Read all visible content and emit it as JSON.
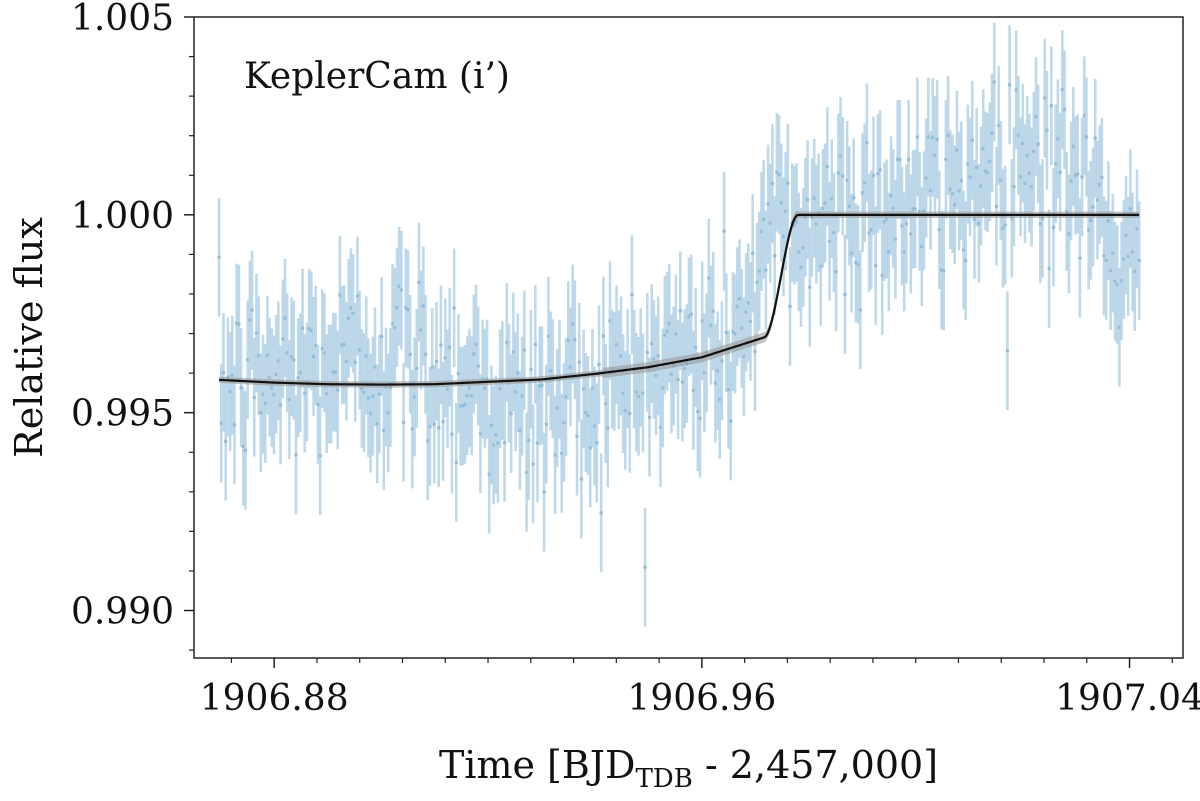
{
  "chart_data": {
    "type": "scatter",
    "annotation": "KeplerCam (i’)",
    "xlabel": {
      "prefix": "Time [BJD",
      "subscript": "TDB",
      "suffix": " - 2,457,000]"
    },
    "ylabel": "Relative flux",
    "xlim": [
      1906.865,
      1907.05
    ],
    "ylim": [
      0.9888,
      1.005
    ],
    "x_major_ticks": [
      1906.88,
      1906.96,
      1907.04
    ],
    "x_major_tick_labels": [
      "1906.88",
      "1906.96",
      "1907.04"
    ],
    "x_minor_tick_step": 0.008,
    "y_major_ticks": [
      0.99,
      0.995,
      1.0,
      1.005
    ],
    "y_major_tick_labels": [
      "0.990",
      "0.995",
      "1.000",
      "1.005"
    ],
    "y_minor_tick_step": 0.001,
    "series": [
      {
        "name": "KeplerCam data",
        "color": "#a9cce3",
        "marker_color": "#8fbad6",
        "x_start": 1906.8697,
        "x_end": 1907.0418,
        "n_points": 420,
        "error": 0.0015,
        "trend_knots": {
          "x": [
            1906.8697,
            1906.885,
            1906.9,
            1906.915,
            1906.925,
            1906.94,
            1906.955,
            1906.967,
            1906.972,
            1906.98,
            1906.995,
            1907.005,
            1907.015,
            1907.025,
            1907.035,
            1907.0418
          ],
          "y": [
            0.9956,
            0.996,
            0.9965,
            0.996,
            0.995,
            0.9955,
            0.9962,
            0.997,
            0.9992,
            0.9998,
            1.0004,
            1.0002,
            1.0016,
            1.0016,
            1.0,
            0.9978
          ]
        },
        "scatter_sd": 0.0012
      },
      {
        "name": "Transit model",
        "color": "#111111",
        "band_color": "#9a9a9a",
        "band_halfwidth": 8e-05,
        "x_start": 1906.8697,
        "x_end": 1907.0418,
        "out_of_transit_flux": 1.0,
        "egress_start": 1906.9716,
        "egress_end": 1906.978,
        "curve_knots": {
          "x": [
            1906.8697,
            1906.88,
            1906.89,
            1906.9,
            1906.91,
            1906.92,
            1906.93,
            1906.94,
            1906.95,
            1906.96,
            1906.9716
          ],
          "y": [
            0.99583,
            0.99576,
            0.99572,
            0.99571,
            0.99572,
            0.99578,
            0.99584,
            0.99598,
            0.99615,
            0.9964,
            0.9969
          ]
        }
      }
    ]
  }
}
